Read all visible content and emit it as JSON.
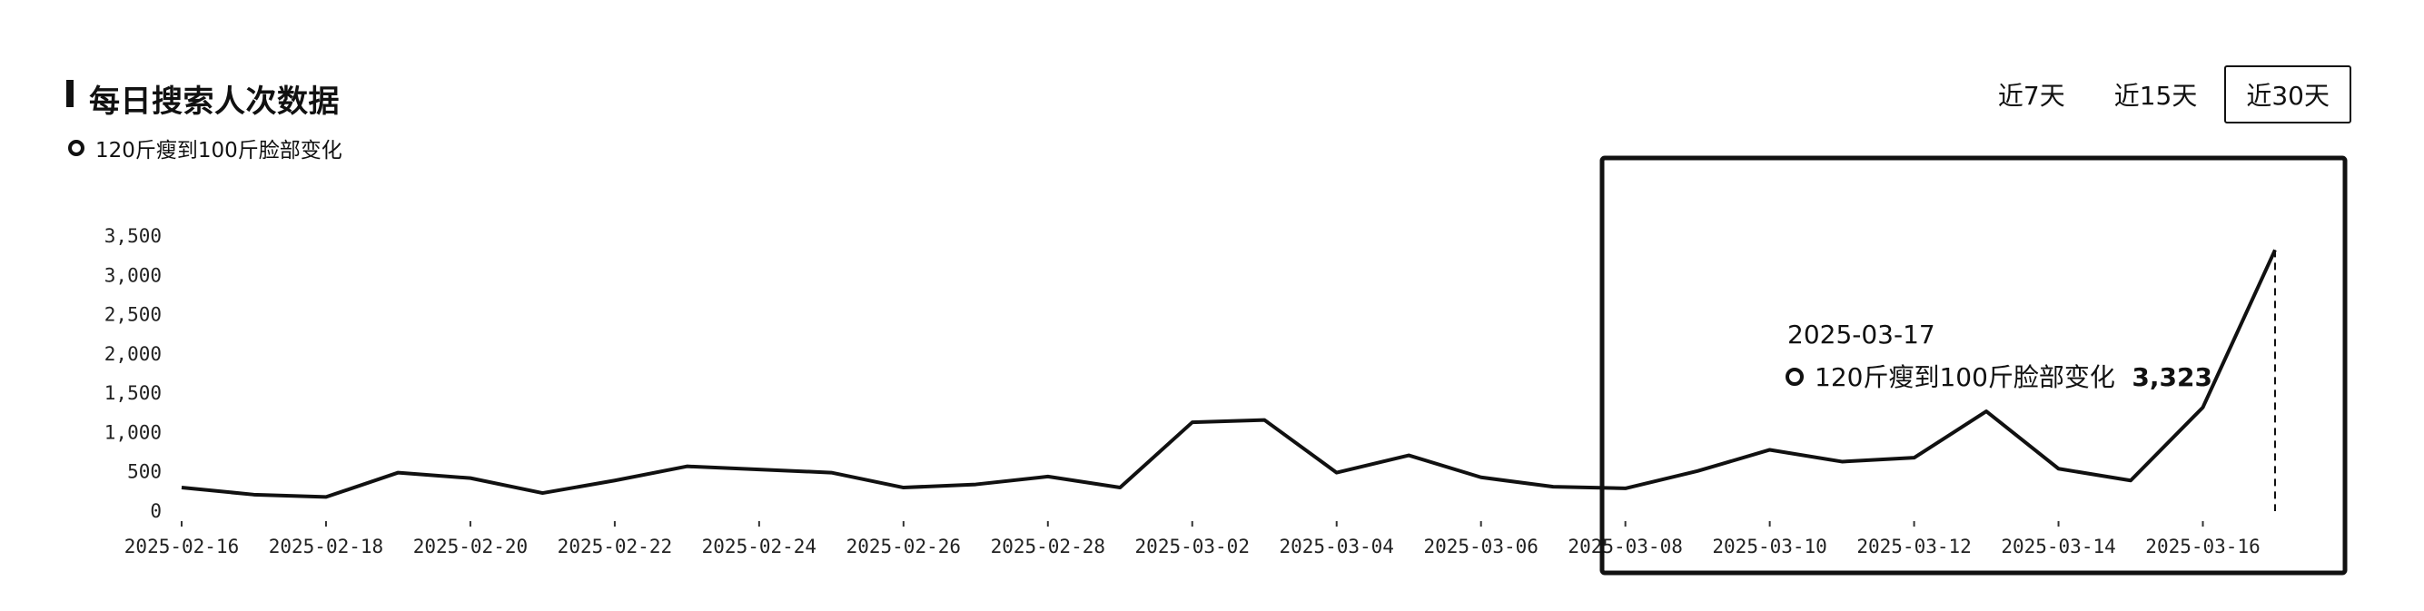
{
  "header": {
    "title": "每日搜索人次数据",
    "legend_label": "120斤瘦到100斤脸部变化"
  },
  "range_tabs": [
    {
      "label": "近7天",
      "active": false
    },
    {
      "label": "近15天",
      "active": false
    },
    {
      "label": "近30天",
      "active": true
    }
  ],
  "tooltip": {
    "date": "2025-03-17",
    "series_label": "120斤瘦到100斤脸部变化",
    "value": "3,323"
  },
  "colors": {
    "line": "#111111",
    "background": "#ffffff"
  },
  "chart_data": {
    "type": "line",
    "title": "每日搜索人次数据",
    "ylim": [
      0,
      3500
    ],
    "y_ticks": [
      "0",
      "500",
      "1,000",
      "1,500",
      "2,000",
      "2,500",
      "3,000",
      "3,500"
    ],
    "x_tick_labels": [
      "2025-02-16",
      "2025-02-18",
      "2025-02-20",
      "2025-02-22",
      "2025-02-24",
      "2025-02-26",
      "2025-02-28",
      "2025-03-02",
      "2025-03-04",
      "2025-03-06",
      "2025-03-08",
      "2025-03-10",
      "2025-03-12",
      "2025-03-14",
      "2025-03-16"
    ],
    "grid": false,
    "series": [
      {
        "name": "120斤瘦到100斤脸部变化",
        "x": [
          "2025-02-16",
          "2025-02-17",
          "2025-02-18",
          "2025-02-19",
          "2025-02-20",
          "2025-02-21",
          "2025-02-22",
          "2025-02-23",
          "2025-02-24",
          "2025-02-25",
          "2025-02-26",
          "2025-02-27",
          "2025-02-28",
          "2025-03-01",
          "2025-03-02",
          "2025-03-03",
          "2025-03-04",
          "2025-03-05",
          "2025-03-06",
          "2025-03-07",
          "2025-03-08",
          "2025-03-09",
          "2025-03-10",
          "2025-03-11",
          "2025-03-12",
          "2025-03-13",
          "2025-03-14",
          "2025-03-15",
          "2025-03-16",
          "2025-03-17"
        ],
        "values": [
          300,
          210,
          180,
          490,
          420,
          230,
          390,
          570,
          530,
          490,
          300,
          340,
          440,
          300,
          1130,
          1160,
          490,
          710,
          430,
          310,
          290,
          510,
          780,
          630,
          680,
          1270,
          540,
          390,
          1320,
          3323
        ]
      }
    ]
  }
}
